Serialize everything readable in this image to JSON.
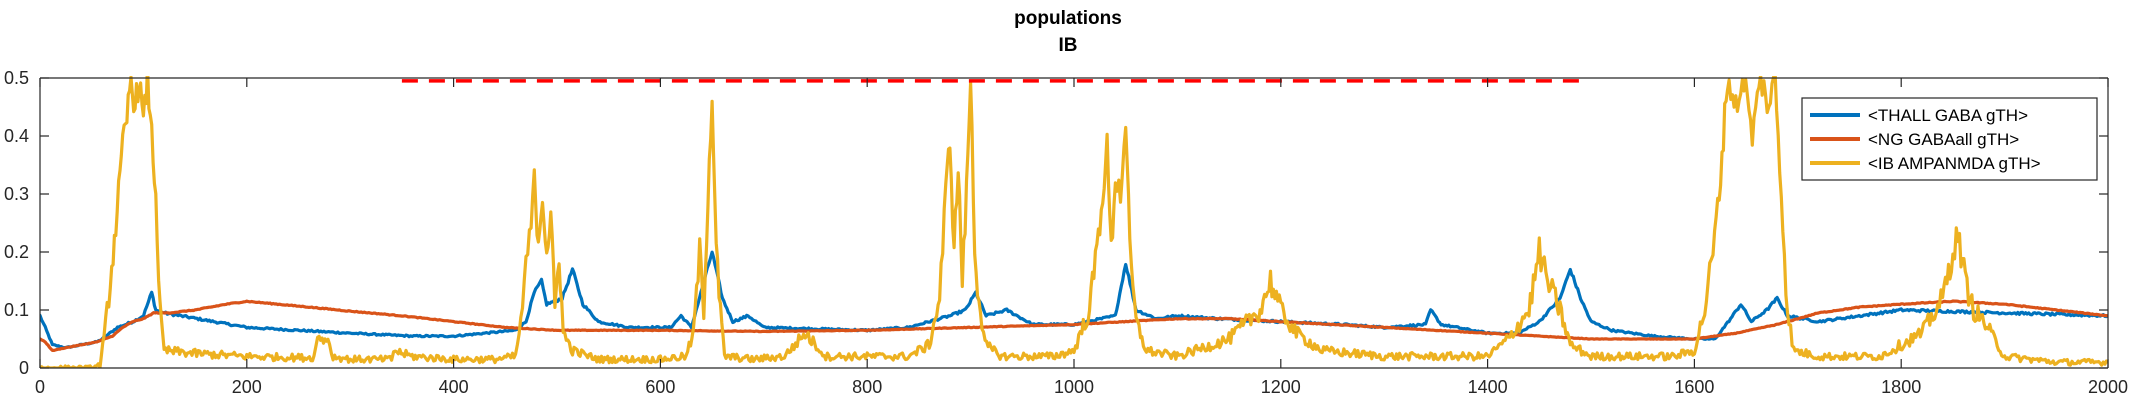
{
  "chart_data": {
    "type": "line",
    "title": "populations",
    "subtitle": "IB",
    "xlabel": "",
    "ylabel": "",
    "xlim": [
      0,
      2000
    ],
    "ylim": [
      0,
      0.5
    ],
    "xticks": [
      0,
      200,
      400,
      600,
      800,
      1000,
      1200,
      1400,
      1600,
      1800,
      2000
    ],
    "yticks": [
      0,
      0.1,
      0.2,
      0.3,
      0.4,
      0.5
    ],
    "ytick_labels": [
      "0",
      "0.1",
      "0.2",
      "0.3",
      "0.4",
      "0.5"
    ],
    "grid": false,
    "legend_position": "top-right",
    "reference_line": {
      "style": "dashed",
      "color": "#ff0000",
      "y": 0.495,
      "x_start": 350,
      "x_end": 1490
    },
    "series": [
      {
        "name": "<THALL GABA gTH>",
        "color": "#0072bd",
        "points": [
          [
            0,
            0.09
          ],
          [
            5,
            0.07
          ],
          [
            12,
            0.04
          ],
          [
            25,
            0.035
          ],
          [
            40,
            0.04
          ],
          [
            55,
            0.045
          ],
          [
            60,
            0.05
          ],
          [
            75,
            0.07
          ],
          [
            90,
            0.08
          ],
          [
            100,
            0.09
          ],
          [
            108,
            0.13
          ],
          [
            112,
            0.1
          ],
          [
            120,
            0.095
          ],
          [
            200,
            0.07
          ],
          [
            300,
            0.06
          ],
          [
            360,
            0.055
          ],
          [
            400,
            0.055
          ],
          [
            460,
            0.065
          ],
          [
            470,
            0.08
          ],
          [
            478,
            0.13
          ],
          [
            485,
            0.15
          ],
          [
            490,
            0.11
          ],
          [
            505,
            0.12
          ],
          [
            515,
            0.17
          ],
          [
            525,
            0.11
          ],
          [
            540,
            0.08
          ],
          [
            570,
            0.07
          ],
          [
            610,
            0.07
          ],
          [
            620,
            0.09
          ],
          [
            630,
            0.07
          ],
          [
            650,
            0.2
          ],
          [
            660,
            0.12
          ],
          [
            670,
            0.08
          ],
          [
            685,
            0.09
          ],
          [
            700,
            0.07
          ],
          [
            800,
            0.065
          ],
          [
            840,
            0.07
          ],
          [
            880,
            0.09
          ],
          [
            895,
            0.1
          ],
          [
            905,
            0.13
          ],
          [
            915,
            0.09
          ],
          [
            935,
            0.1
          ],
          [
            960,
            0.075
          ],
          [
            1000,
            0.075
          ],
          [
            1040,
            0.09
          ],
          [
            1050,
            0.18
          ],
          [
            1060,
            0.1
          ],
          [
            1080,
            0.085
          ],
          [
            1100,
            0.09
          ],
          [
            1140,
            0.085
          ],
          [
            1200,
            0.08
          ],
          [
            1260,
            0.075
          ],
          [
            1300,
            0.07
          ],
          [
            1340,
            0.075
          ],
          [
            1345,
            0.1
          ],
          [
            1355,
            0.075
          ],
          [
            1400,
            0.06
          ],
          [
            1430,
            0.06
          ],
          [
            1450,
            0.08
          ],
          [
            1470,
            0.12
          ],
          [
            1480,
            0.17
          ],
          [
            1490,
            0.12
          ],
          [
            1500,
            0.08
          ],
          [
            1520,
            0.065
          ],
          [
            1560,
            0.055
          ],
          [
            1600,
            0.05
          ],
          [
            1620,
            0.05
          ],
          [
            1635,
            0.085
          ],
          [
            1645,
            0.11
          ],
          [
            1655,
            0.08
          ],
          [
            1670,
            0.1
          ],
          [
            1680,
            0.12
          ],
          [
            1690,
            0.09
          ],
          [
            1720,
            0.08
          ],
          [
            1800,
            0.1
          ],
          [
            2000,
            0.09
          ]
        ]
      },
      {
        "name": "<NG GABAall gTH>",
        "color": "#d95319",
        "points": [
          [
            0,
            0.05
          ],
          [
            5,
            0.045
          ],
          [
            12,
            0.03
          ],
          [
            25,
            0.035
          ],
          [
            40,
            0.04
          ],
          [
            55,
            0.045
          ],
          [
            70,
            0.055
          ],
          [
            80,
            0.07
          ],
          [
            90,
            0.08
          ],
          [
            100,
            0.085
          ],
          [
            110,
            0.095
          ],
          [
            125,
            0.095
          ],
          [
            150,
            0.1
          ],
          [
            180,
            0.11
          ],
          [
            200,
            0.115
          ],
          [
            230,
            0.11
          ],
          [
            260,
            0.105
          ],
          [
            300,
            0.098
          ],
          [
            350,
            0.09
          ],
          [
            400,
            0.08
          ],
          [
            450,
            0.07
          ],
          [
            500,
            0.065
          ],
          [
            550,
            0.065
          ],
          [
            600,
            0.065
          ],
          [
            700,
            0.063
          ],
          [
            800,
            0.065
          ],
          [
            900,
            0.07
          ],
          [
            1000,
            0.075
          ],
          [
            1050,
            0.08
          ],
          [
            1100,
            0.085
          ],
          [
            1150,
            0.085
          ],
          [
            1200,
            0.08
          ],
          [
            1250,
            0.075
          ],
          [
            1300,
            0.07
          ],
          [
            1350,
            0.065
          ],
          [
            1400,
            0.06
          ],
          [
            1450,
            0.055
          ],
          [
            1500,
            0.05
          ],
          [
            1550,
            0.05
          ],
          [
            1600,
            0.05
          ],
          [
            1640,
            0.06
          ],
          [
            1680,
            0.075
          ],
          [
            1700,
            0.085
          ],
          [
            1720,
            0.095
          ],
          [
            1760,
            0.105
          ],
          [
            1800,
            0.11
          ],
          [
            1850,
            0.115
          ],
          [
            1900,
            0.11
          ],
          [
            1950,
            0.1
          ],
          [
            2000,
            0.09
          ]
        ]
      },
      {
        "name": "<IB AMPANMDA gTH>",
        "color": "#edb120",
        "points": [
          [
            0,
            0.0
          ],
          [
            20,
            0.0
          ],
          [
            50,
            0.0
          ],
          [
            58,
            0.005
          ],
          [
            62,
            0.05
          ],
          [
            68,
            0.15
          ],
          [
            72,
            0.22
          ],
          [
            76,
            0.3
          ],
          [
            80,
            0.38
          ],
          [
            84,
            0.43
          ],
          [
            88,
            0.5
          ],
          [
            92,
            0.45
          ],
          [
            96,
            0.5
          ],
          [
            100,
            0.42
          ],
          [
            104,
            0.5
          ],
          [
            108,
            0.4
          ],
          [
            112,
            0.3
          ],
          [
            116,
            0.1
          ],
          [
            120,
            0.03
          ],
          [
            150,
            0.025
          ],
          [
            200,
            0.02
          ],
          [
            250,
            0.018
          ],
          [
            265,
            0.018
          ],
          [
            267,
            0.05
          ],
          [
            280,
            0.05
          ],
          [
            282,
            0.02
          ],
          [
            300,
            0.015
          ],
          [
            340,
            0.015
          ],
          [
            342,
            0.03
          ],
          [
            360,
            0.02
          ],
          [
            400,
            0.015
          ],
          [
            440,
            0.015
          ],
          [
            460,
            0.02
          ],
          [
            465,
            0.08
          ],
          [
            470,
            0.17
          ],
          [
            475,
            0.25
          ],
          [
            478,
            0.32
          ],
          [
            482,
            0.22
          ],
          [
            486,
            0.3
          ],
          [
            490,
            0.2
          ],
          [
            494,
            0.26
          ],
          [
            498,
            0.1
          ],
          [
            502,
            0.2
          ],
          [
            506,
            0.06
          ],
          [
            515,
            0.03
          ],
          [
            540,
            0.015
          ],
          [
            600,
            0.015
          ],
          [
            625,
            0.02
          ],
          [
            632,
            0.06
          ],
          [
            638,
            0.2
          ],
          [
            642,
            0.1
          ],
          [
            646,
            0.3
          ],
          [
            650,
            0.47
          ],
          [
            654,
            0.2
          ],
          [
            658,
            0.1
          ],
          [
            662,
            0.02
          ],
          [
            690,
            0.015
          ],
          [
            720,
            0.02
          ],
          [
            740,
            0.06
          ],
          [
            760,
            0.02
          ],
          [
            800,
            0.02
          ],
          [
            840,
            0.02
          ],
          [
            860,
            0.04
          ],
          [
            870,
            0.12
          ],
          [
            876,
            0.3
          ],
          [
            880,
            0.4
          ],
          [
            884,
            0.2
          ],
          [
            888,
            0.35
          ],
          [
            892,
            0.15
          ],
          [
            896,
            0.3
          ],
          [
            900,
            0.5
          ],
          [
            904,
            0.2
          ],
          [
            908,
            0.12
          ],
          [
            914,
            0.04
          ],
          [
            930,
            0.02
          ],
          [
            980,
            0.02
          ],
          [
            1000,
            0.03
          ],
          [
            1015,
            0.1
          ],
          [
            1025,
            0.25
          ],
          [
            1032,
            0.38
          ],
          [
            1036,
            0.2
          ],
          [
            1040,
            0.33
          ],
          [
            1045,
            0.3
          ],
          [
            1050,
            0.43
          ],
          [
            1054,
            0.2
          ],
          [
            1060,
            0.08
          ],
          [
            1070,
            0.03
          ],
          [
            1100,
            0.02
          ],
          [
            1150,
            0.05
          ],
          [
            1180,
            0.1
          ],
          [
            1190,
            0.15
          ],
          [
            1200,
            0.1
          ],
          [
            1215,
            0.06
          ],
          [
            1240,
            0.03
          ],
          [
            1300,
            0.02
          ],
          [
            1400,
            0.02
          ],
          [
            1420,
            0.05
          ],
          [
            1440,
            0.1
          ],
          [
            1450,
            0.2
          ],
          [
            1458,
            0.15
          ],
          [
            1470,
            0.1
          ],
          [
            1480,
            0.04
          ],
          [
            1500,
            0.02
          ],
          [
            1580,
            0.02
          ],
          [
            1600,
            0.03
          ],
          [
            1610,
            0.1
          ],
          [
            1618,
            0.2
          ],
          [
            1624,
            0.3
          ],
          [
            1628,
            0.4
          ],
          [
            1632,
            0.5
          ],
          [
            1640,
            0.45
          ],
          [
            1648,
            0.5
          ],
          [
            1656,
            0.4
          ],
          [
            1664,
            0.5
          ],
          [
            1672,
            0.45
          ],
          [
            1678,
            0.5
          ],
          [
            1684,
            0.3
          ],
          [
            1690,
            0.1
          ],
          [
            1696,
            0.03
          ],
          [
            1720,
            0.02
          ],
          [
            1780,
            0.02
          ],
          [
            1820,
            0.06
          ],
          [
            1840,
            0.12
          ],
          [
            1850,
            0.2
          ],
          [
            1855,
            0.23
          ],
          [
            1862,
            0.15
          ],
          [
            1870,
            0.1
          ],
          [
            1880,
            0.08
          ],
          [
            1890,
            0.05
          ],
          [
            1900,
            0.02
          ],
          [
            1950,
            0.01
          ],
          [
            2000,
            0.01
          ]
        ]
      }
    ]
  }
}
